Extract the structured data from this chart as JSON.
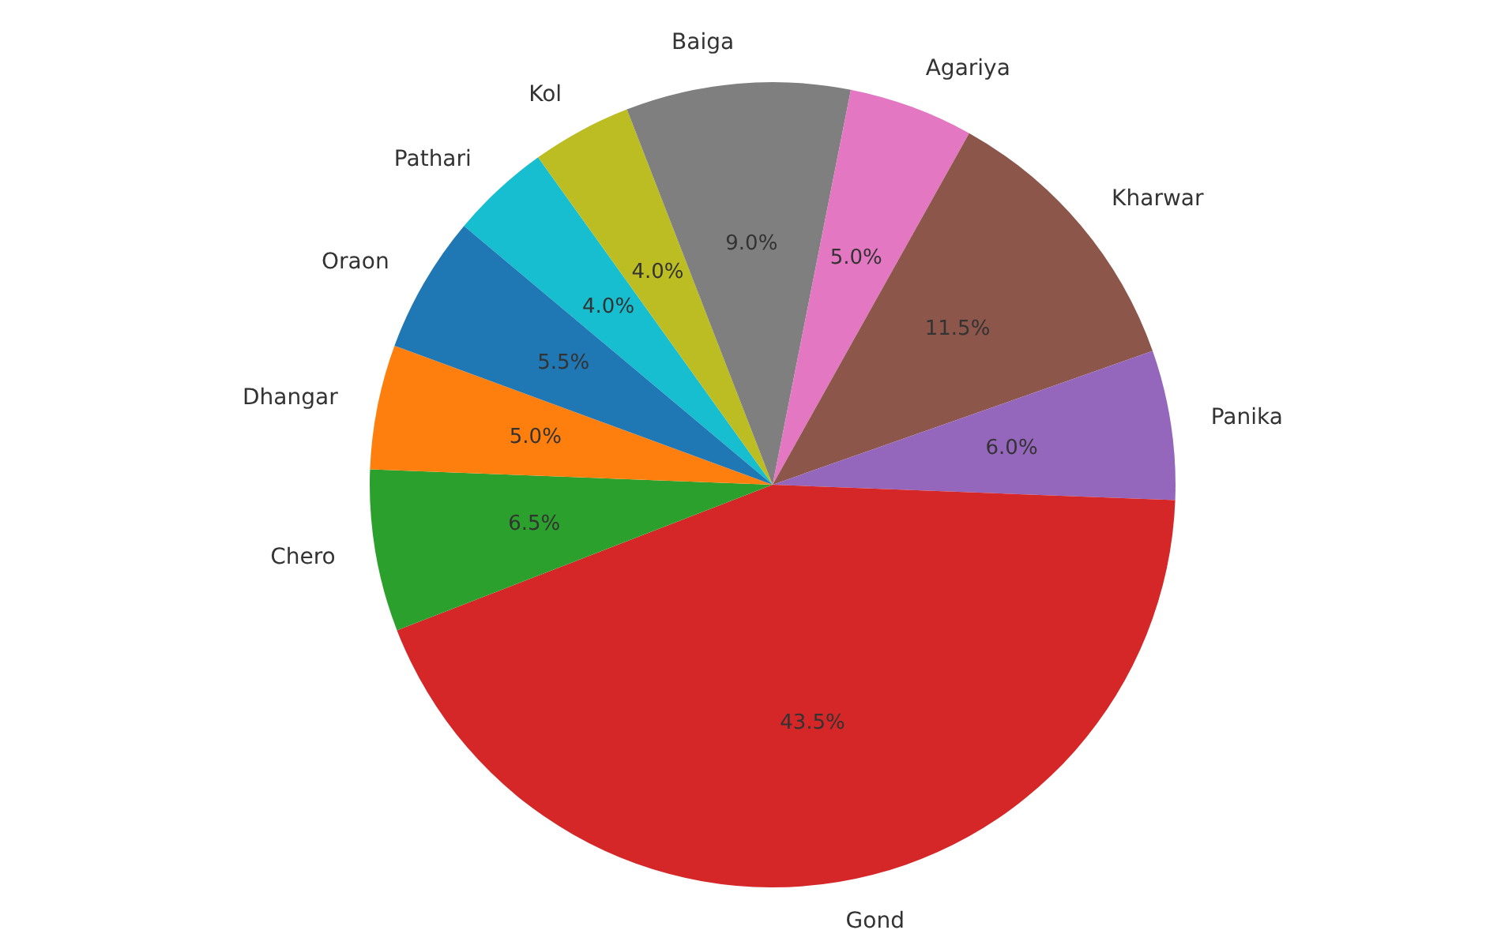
{
  "chart_data": {
    "type": "pie",
    "categories": [
      "Oraon",
      "Dhangar",
      "Chero",
      "Gond",
      "Panika",
      "Kharwar",
      "Agariya",
      "Baiga",
      "Kol",
      "Pathari"
    ],
    "values": [
      5.5,
      5.0,
      6.5,
      43.5,
      6.0,
      11.5,
      5.0,
      9.0,
      4.0,
      4.0
    ],
    "value_labels": [
      "5.5%",
      "5.0%",
      "6.5%",
      "43.5%",
      "6.0%",
      "11.5%",
      "5.0%",
      "9.0%",
      "4.0%",
      "4.0%"
    ],
    "colors": [
      "#1f77b4",
      "#ff7f0e",
      "#2ca02c",
      "#d62728",
      "#9467bd",
      "#8c564b",
      "#e377c2",
      "#7f7f7f",
      "#bcbd22",
      "#17becf"
    ],
    "legend": false
  }
}
